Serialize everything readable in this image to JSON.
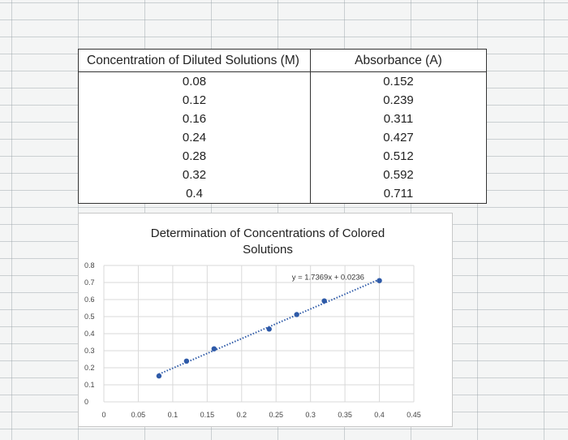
{
  "table": {
    "headers": [
      "Concentration of Diluted Solutions (M)",
      "Absorbance (A)"
    ],
    "rows": [
      [
        "0.08",
        "0.152"
      ],
      [
        "0.12",
        "0.239"
      ],
      [
        "0.16",
        "0.311"
      ],
      [
        "0.24",
        "0.427"
      ],
      [
        "0.28",
        "0.512"
      ],
      [
        "0.32",
        "0.592"
      ],
      [
        "0.4",
        "0.711"
      ]
    ]
  },
  "chart_data": {
    "type": "scatter",
    "title": "Determination of Concentrations of Colored Solutions",
    "title_lines": [
      "Determination of Concentrations of Colored",
      "Solutions"
    ],
    "xlabel": "",
    "ylabel": "",
    "x_ticks": [
      "0",
      "0.05",
      "0.1",
      "0.15",
      "0.2",
      "0.25",
      "0.3",
      "0.35",
      "0.4",
      "0.45"
    ],
    "y_ticks": [
      "0",
      "0.1",
      "0.2",
      "0.3",
      "0.4",
      "0.5",
      "0.6",
      "0.7",
      "0.8"
    ],
    "xlim": [
      0,
      0.45
    ],
    "ylim": [
      0,
      0.8
    ],
    "grid": true,
    "series": [
      {
        "x": [
          0.08,
          0.12,
          0.16,
          0.24,
          0.28,
          0.32,
          0.4
        ],
        "y": [
          0.152,
          0.239,
          0.311,
          0.427,
          0.512,
          0.592,
          0.711
        ],
        "color": "#2e5aa8"
      }
    ],
    "trendline": {
      "type": "linear",
      "slope": 1.7369,
      "intercept": 0.0236,
      "equation": "y = 1.7369x + 0.0236",
      "style": "dotted",
      "color": "#2e5aa8"
    }
  }
}
